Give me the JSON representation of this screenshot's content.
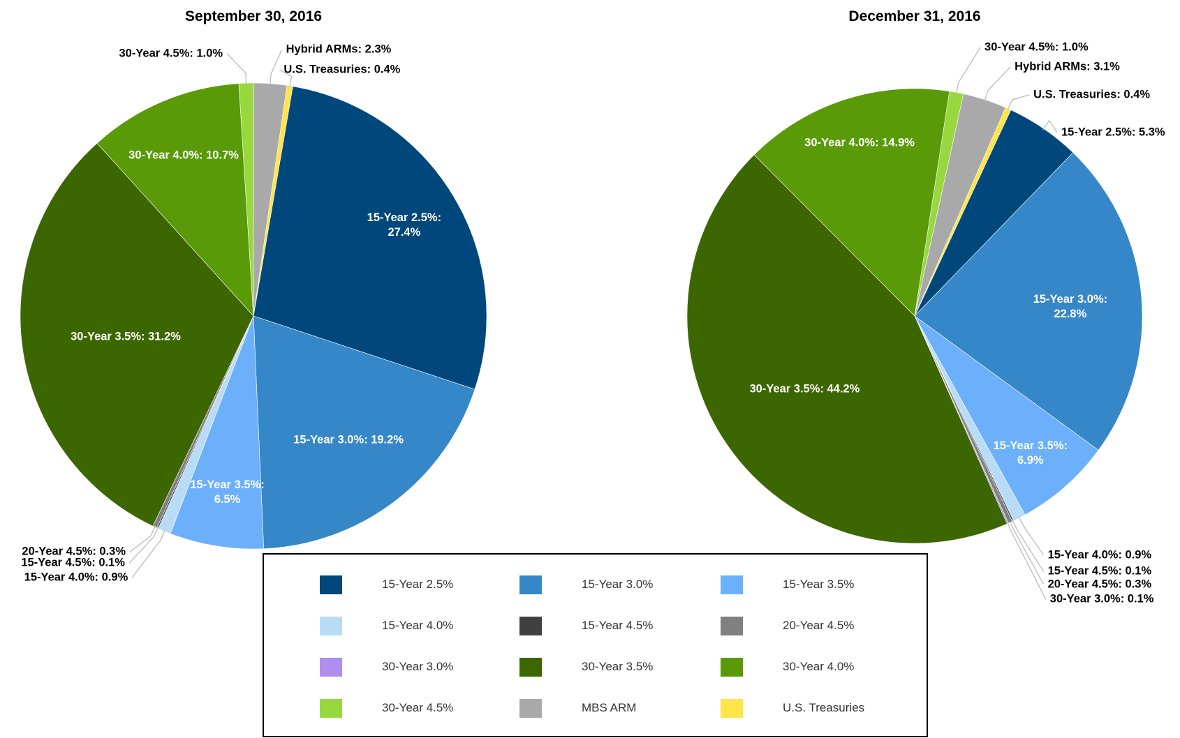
{
  "chart_data": [
    {
      "type": "pie",
      "title": "September 30, 2016",
      "values": [
        27.4,
        19.2,
        6.5,
        0.9,
        0.1,
        0.3,
        null,
        31.2,
        10.7,
        1.0,
        2.3,
        0.4
      ],
      "value_labels": [
        "15-Year 2.5%:\n27.4%",
        "15-Year 3.0%: 19.2%",
        "15-Year 3.5%:\n6.5%",
        "15-Year 4.0%: 0.9%",
        "15-Year 4.5%: 0.1%",
        "20-Year 4.5%: 0.3%",
        null,
        "30-Year 3.5%: 31.2%",
        "30-Year 4.0%: 10.7%",
        "30-Year 4.5%: 1.0%",
        "Hybrid ARMs: 2.3%",
        "U.S. Treasuries: 0.4%"
      ]
    },
    {
      "type": "pie",
      "title": "December 31, 2016",
      "values": [
        5.3,
        22.8,
        6.9,
        0.9,
        0.1,
        0.3,
        0.1,
        44.2,
        14.9,
        1.0,
        3.1,
        0.4
      ],
      "value_labels": [
        "15-Year 2.5%: 5.3%",
        "15-Year 3.0%: 22.8%",
        "15-Year 3.5%:\n6.9%",
        "15-Year 4.0%: 0.9%",
        "15-Year 4.5%: 0.1%",
        "20-Year 4.5%: 0.3%",
        "30-Year 3.0%: 0.1%",
        "30-Year 3.5%: 44.2%",
        "30-Year 4.0%: 14.9%",
        "30-Year 4.5%: 1.0%",
        "Hybrid ARMs: 3.1%",
        "U.S. Treasuries: 0.4%"
      ]
    }
  ],
  "legend": {
    "categories": [
      "15-Year 2.5%",
      "15-Year 3.0%",
      "15-Year 3.5%",
      "15-Year 4.0%",
      "15-Year 4.5%",
      "20-Year 4.5%",
      "30-Year 3.0%",
      "30-Year 3.5%",
      "30-Year 4.0%",
      "30-Year 4.5%",
      "MBS ARM",
      "U.S. Treasuries"
    ],
    "colors": [
      "#00487c",
      "#3587c8",
      "#6cb0fc",
      "#b9dcf6",
      "#404040",
      "#808080",
      "#b08ef0",
      "#3c6600",
      "#5a9a08",
      "#98d83e",
      "#a9a9a9",
      "#ffe44a"
    ]
  }
}
